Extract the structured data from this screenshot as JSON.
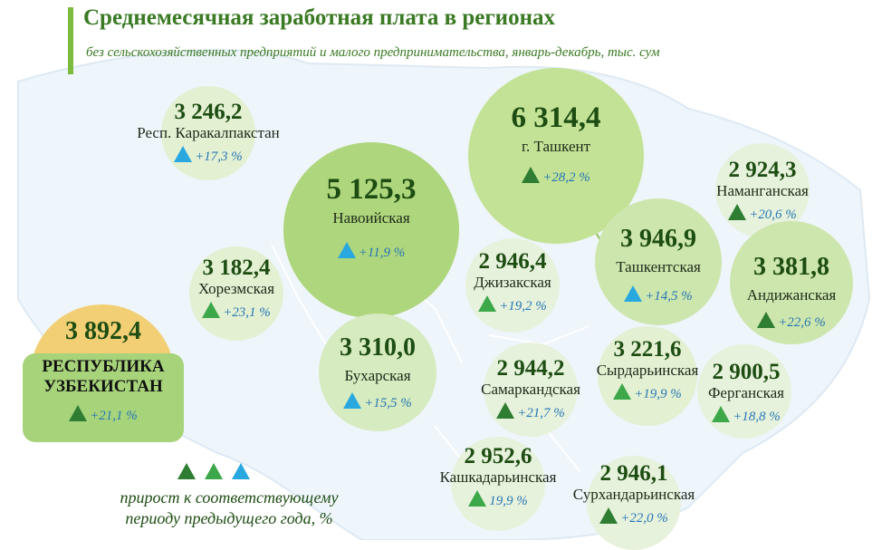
{
  "title": "Среднемесячная заработная плата в регионах",
  "subtitle": "без сельскохозяйственных предприятий и малого предпринимательства, январь-декабрь, тыс. сум",
  "chart_data": {
    "type": "bubble-map",
    "unit": "тыс. сум",
    "growth_unit": "%",
    "total": {
      "name_line1": "РЕСПУБЛИКА",
      "name_line2": "УЗБЕКИСТАН",
      "value": "3 892,4",
      "growth": "+21,1 %",
      "triangle": "dark-green"
    },
    "regions": [
      {
        "name": "Респ. Каракалпакстан",
        "value": "3 246,2",
        "growth": "+17,3 %",
        "triangle": "blue"
      },
      {
        "name": "Навоийская",
        "value": "5 125,3",
        "growth": "+11,9 %",
        "triangle": "blue"
      },
      {
        "name": "г. Ташкент",
        "value": "6 314,4",
        "growth": "+28,2 %",
        "triangle": "dark-green"
      },
      {
        "name": "Наманганская",
        "value": "2 924,3",
        "growth": "+20,6 %",
        "triangle": "dark-green"
      },
      {
        "name": "Хорезмская",
        "value": "3 182,4",
        "growth": "+23,1 %",
        "triangle": "light-green"
      },
      {
        "name": "Джизакская",
        "value": "2 946,4",
        "growth": "+19,2 %",
        "triangle": "light-green"
      },
      {
        "name": "Ташкентская",
        "value": "3 946,9",
        "growth": "+14,5 %",
        "triangle": "blue"
      },
      {
        "name": "Андижанская",
        "value": "3 381,8",
        "growth": "+22,6 %",
        "triangle": "dark-green"
      },
      {
        "name": "Бухарская",
        "value": "3 310,0",
        "growth": "+15,5 %",
        "triangle": "blue"
      },
      {
        "name": "Самаркандская",
        "value": "2 944,2",
        "growth": "+21,7 %",
        "triangle": "dark-green"
      },
      {
        "name": "Сырдарьинская",
        "value": "3 221,6",
        "growth": "+19,9 %",
        "triangle": "light-green"
      },
      {
        "name": "Ферганская",
        "value": "2 900,5",
        "growth": "+18,8 %",
        "triangle": "light-green"
      },
      {
        "name": "Кашкадарьинская",
        "value": "2 952,6",
        "growth": "19,9 %",
        "triangle": "light-green"
      },
      {
        "name": "Сурхандарьинская",
        "value": "2 946,1",
        "growth": "+22,0 %",
        "triangle": "dark-green"
      }
    ],
    "legend": {
      "triangles": [
        "dark-green",
        "light-green",
        "blue"
      ],
      "text_line1": "прирост к соответствующему",
      "text_line2": "периоду предыдущего года,  %"
    }
  }
}
